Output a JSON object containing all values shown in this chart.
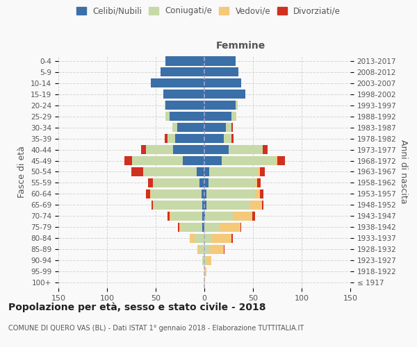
{
  "age_groups": [
    "100+",
    "95-99",
    "90-94",
    "85-89",
    "80-84",
    "75-79",
    "70-74",
    "65-69",
    "60-64",
    "55-59",
    "50-54",
    "45-49",
    "40-44",
    "35-39",
    "30-34",
    "25-29",
    "20-24",
    "15-19",
    "10-14",
    "5-9",
    "0-4"
  ],
  "birth_years": [
    "≤ 1917",
    "1918-1922",
    "1923-1927",
    "1928-1932",
    "1933-1937",
    "1938-1942",
    "1943-1947",
    "1948-1952",
    "1953-1957",
    "1958-1962",
    "1963-1967",
    "1968-1972",
    "1973-1977",
    "1978-1982",
    "1983-1987",
    "1988-1992",
    "1993-1997",
    "1998-2002",
    "2003-2007",
    "2008-2012",
    "2013-2017"
  ],
  "males": {
    "celibi": [
      0,
      0,
      0,
      0,
      0,
      2,
      2,
      2,
      3,
      5,
      8,
      22,
      32,
      30,
      28,
      36,
      40,
      42,
      55,
      45,
      40
    ],
    "coniugati": [
      0,
      0,
      2,
      5,
      10,
      22,
      32,
      50,
      52,
      48,
      55,
      52,
      28,
      8,
      5,
      4,
      1,
      0,
      0,
      0,
      0
    ],
    "vedovi": [
      0,
      0,
      0,
      2,
      5,
      2,
      2,
      1,
      1,
      0,
      0,
      0,
      0,
      0,
      0,
      0,
      0,
      0,
      0,
      0,
      0
    ],
    "divorziati": [
      0,
      0,
      0,
      0,
      0,
      1,
      2,
      1,
      4,
      5,
      12,
      8,
      5,
      3,
      0,
      0,
      0,
      0,
      0,
      0,
      0
    ]
  },
  "females": {
    "nubili": [
      0,
      0,
      0,
      0,
      0,
      0,
      1,
      2,
      2,
      4,
      5,
      18,
      25,
      20,
      22,
      28,
      32,
      42,
      38,
      35,
      32
    ],
    "coniugate": [
      0,
      0,
      2,
      5,
      8,
      15,
      28,
      45,
      50,
      48,
      50,
      55,
      35,
      8,
      6,
      5,
      2,
      0,
      0,
      0,
      0
    ],
    "vedove": [
      1,
      2,
      5,
      15,
      20,
      22,
      20,
      12,
      5,
      2,
      2,
      2,
      0,
      0,
      0,
      0,
      0,
      0,
      0,
      0,
      0
    ],
    "divorziate": [
      0,
      0,
      0,
      1,
      1,
      1,
      3,
      2,
      4,
      4,
      5,
      8,
      5,
      2,
      1,
      0,
      0,
      0,
      0,
      0,
      0
    ]
  },
  "colors": {
    "celibi": "#3A6FA8",
    "coniugati": "#C8D9A8",
    "vedovi": "#F5C97A",
    "divorziati": "#D03020"
  },
  "xlim": 150,
  "title": "Popolazione per età, sesso e stato civile - 2018",
  "subtitle": "COMUNE DI QUERO VAS (BL) - Dati ISTAT 1° gennaio 2018 - Elaborazione TUTTITALIA.IT",
  "ylabel_left": "Fasce di età",
  "ylabel_right": "Anni di nascita",
  "xlabel_femmine": "Femmine",
  "bg_color": "#f9f9f9",
  "grid_color": "#cccccc"
}
